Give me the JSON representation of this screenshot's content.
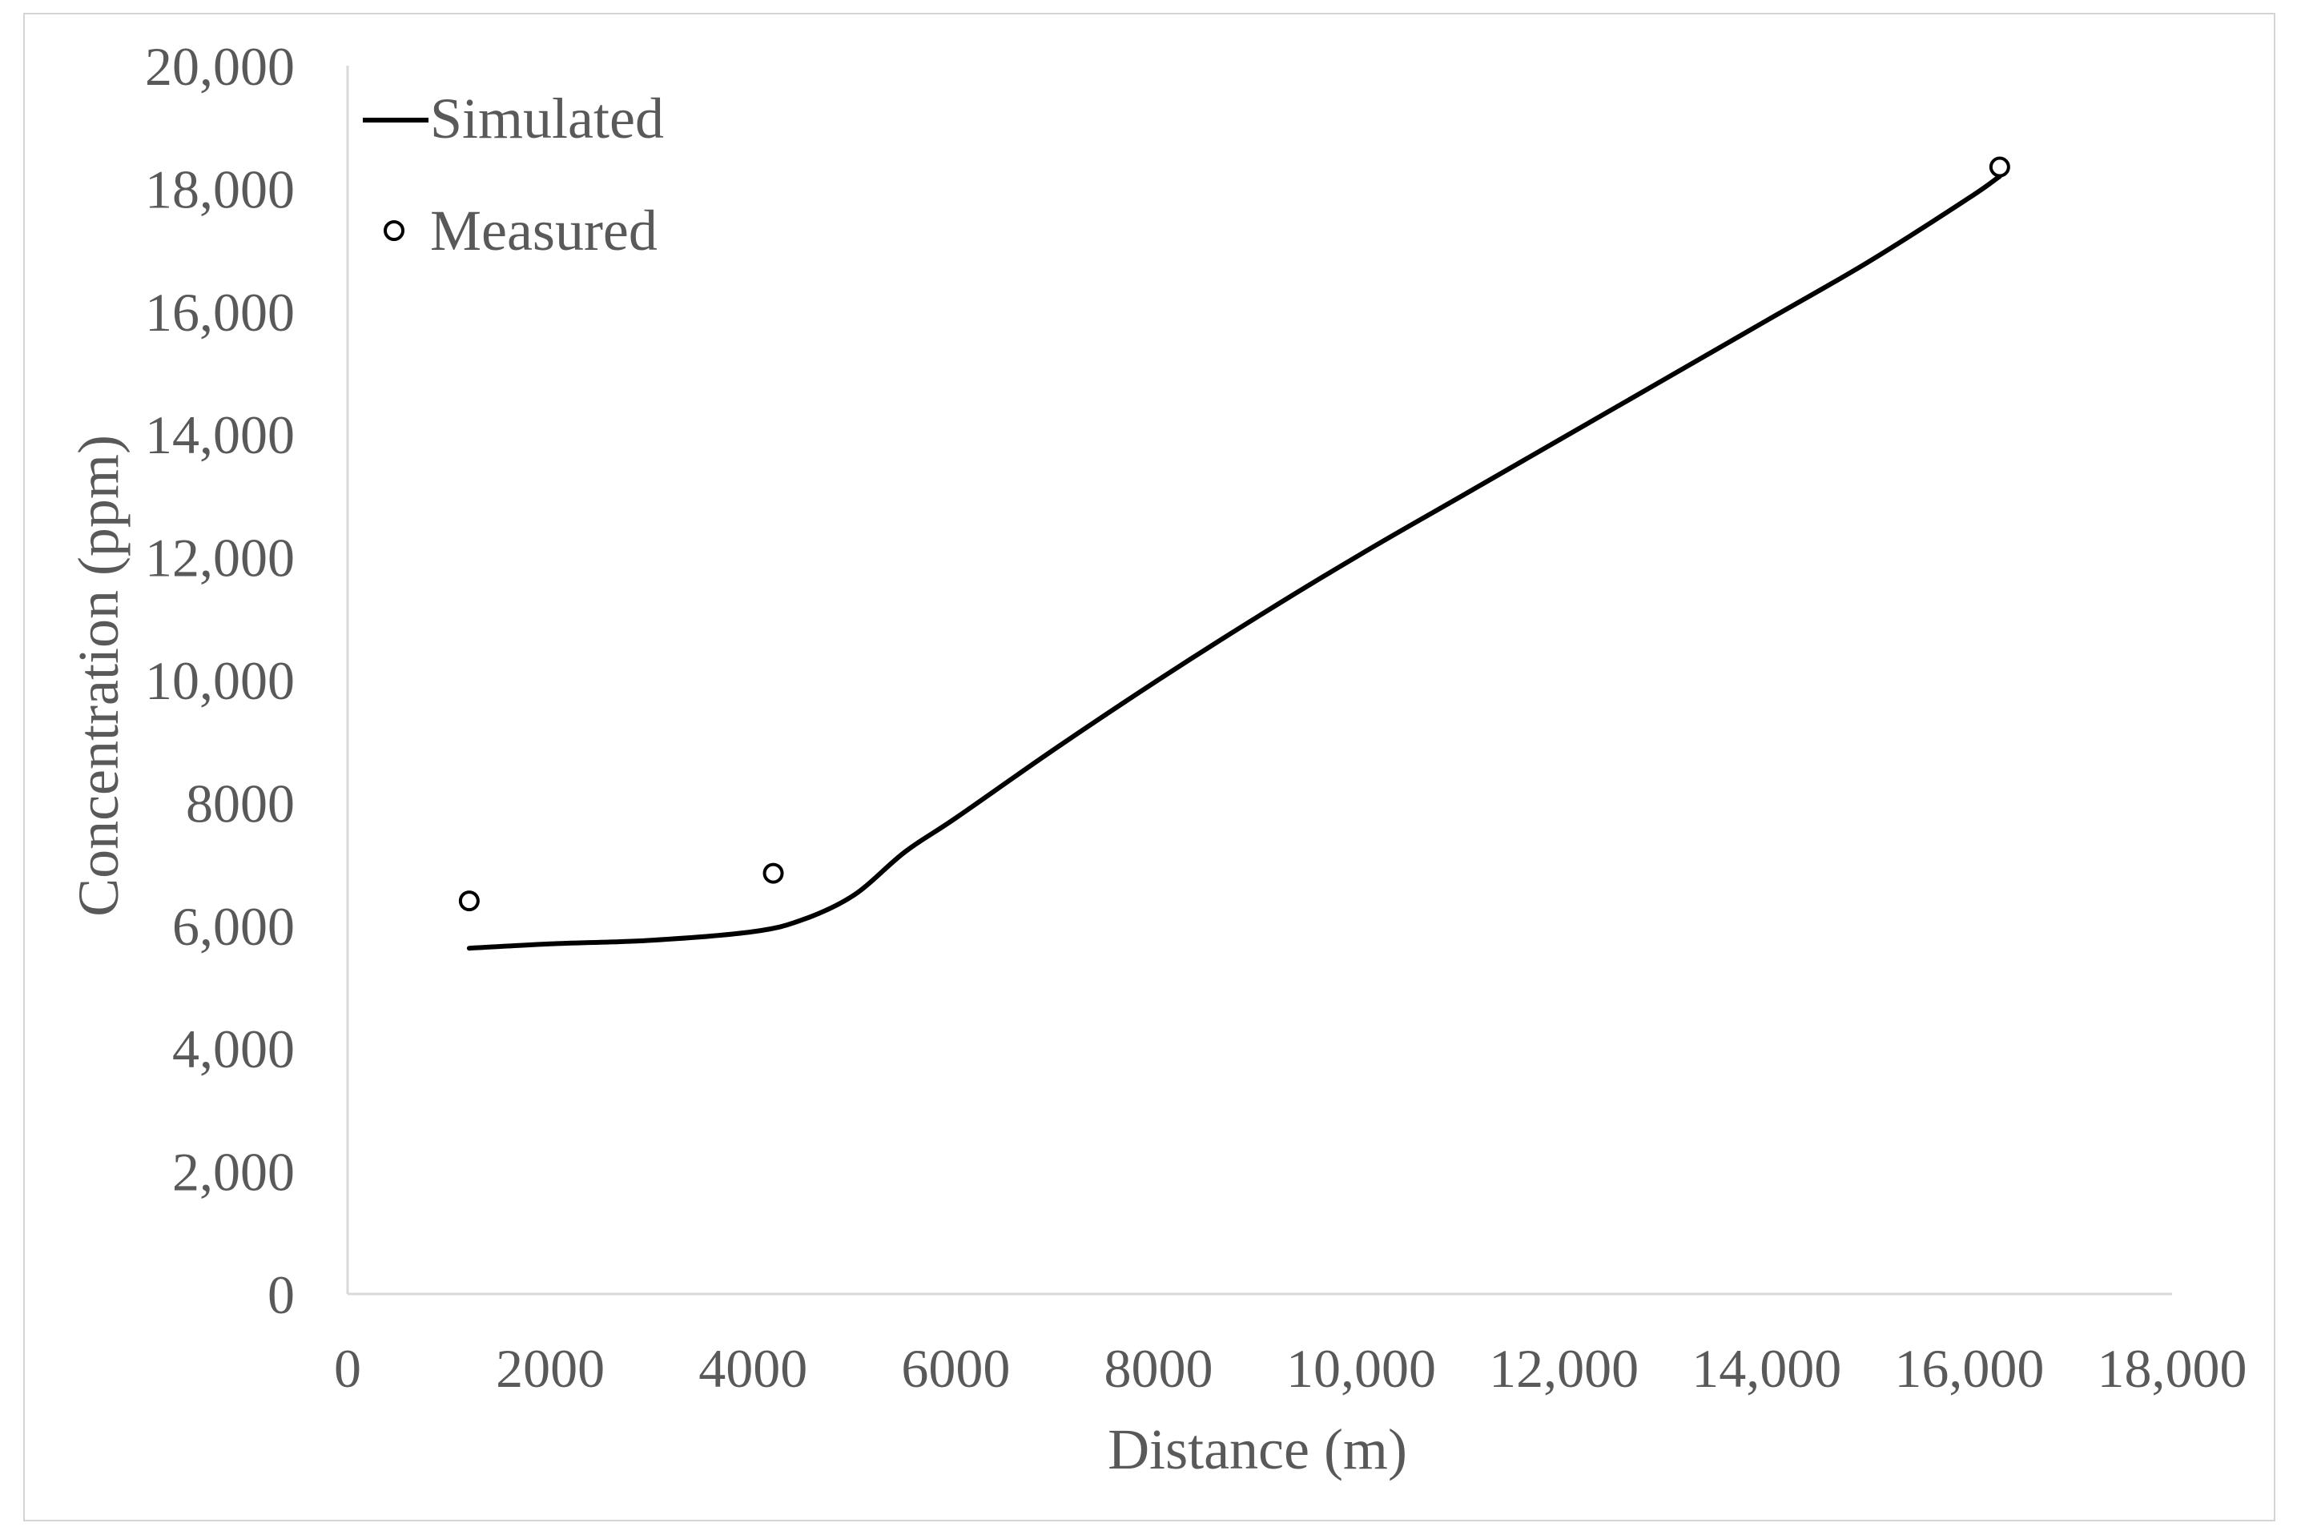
{
  "chart_data": {
    "type": "line",
    "title": "",
    "xlabel": "Distance (m)",
    "ylabel": "Concentration (ppm)",
    "xlim": [
      0,
      18000
    ],
    "ylim": [
      0,
      20000
    ],
    "grid": false,
    "legend_position": "top-left",
    "x_ticks": [
      0,
      2000,
      4000,
      6000,
      8000,
      10000,
      12000,
      14000,
      16000,
      18000
    ],
    "x_tick_labels": [
      "0",
      "2000",
      "4000",
      "6000",
      "8000",
      "10,000",
      "12,000",
      "14,000",
      "16,000",
      "18,000"
    ],
    "y_ticks": [
      0,
      2000,
      4000,
      6000,
      8000,
      10000,
      12000,
      14000,
      16000,
      18000,
      20000
    ],
    "y_tick_labels": [
      "0",
      "2,000",
      "4,000",
      "6,000",
      "8000",
      "10,000",
      "12,000",
      "14,000",
      "16,000",
      "18,000",
      "20,000"
    ],
    "series": [
      {
        "name": "Simulated",
        "style": "line",
        "color": "#000000",
        "x": [
          1200,
          2000,
          3000,
          4000,
          4500,
          5000,
          5500,
          6000,
          7000,
          8000,
          9000,
          10000,
          11000,
          12000,
          13000,
          14000,
          15000,
          16000,
          16300
        ],
        "y": [
          5630,
          5700,
          5760,
          5900,
          6100,
          6500,
          7200,
          7750,
          8900,
          10000,
          11050,
          12050,
          13000,
          13950,
          14900,
          15850,
          16800,
          17850,
          18200
        ]
      },
      {
        "name": "Measured",
        "style": "marker",
        "marker": "open-circle",
        "color": "#000000",
        "x": [
          1200,
          4200,
          16300
        ],
        "y": [
          6400,
          6850,
          18350
        ]
      }
    ]
  }
}
